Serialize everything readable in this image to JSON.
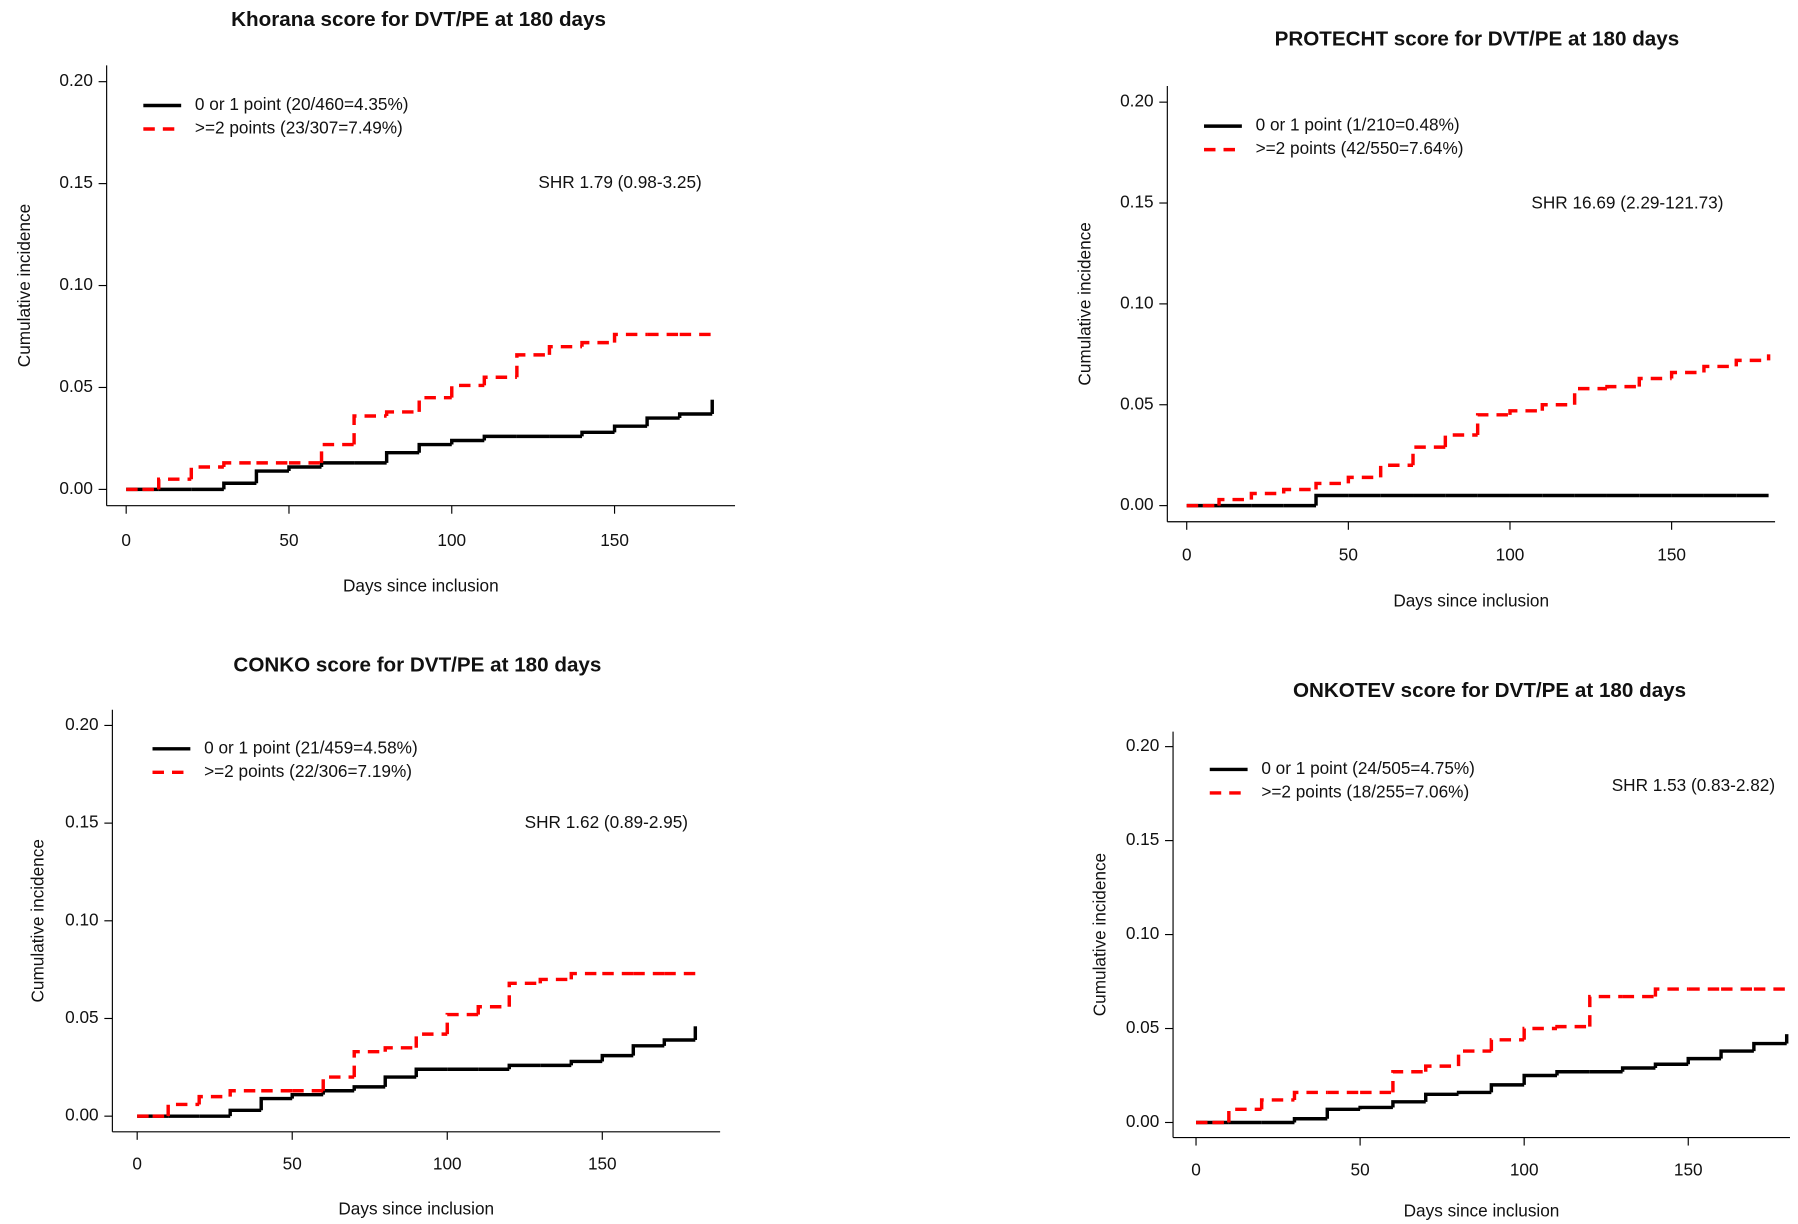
{
  "chart_data": [
    {
      "type": "line",
      "drawstyle": "steps-post",
      "title": "Khorana score for DVT/PE at 180 days",
      "xlabel": "Days since inclusion",
      "ylabel": "Cumulative incidence",
      "annotation": "SHR 1.79 (0.98-3.25)",
      "x": [
        0,
        5,
        10,
        20,
        30,
        40,
        50,
        60,
        70,
        80,
        90,
        100,
        110,
        120,
        130,
        140,
        150,
        160,
        170,
        180
      ],
      "series": [
        {
          "name": "0 or 1 point (20/460=4.35%)",
          "color": "#000000",
          "linestyle": "solid",
          "values": [
            0,
            0,
            0,
            0,
            0.003,
            0.009,
            0.011,
            0.013,
            0.013,
            0.018,
            0.022,
            0.024,
            0.026,
            0.026,
            0.026,
            0.028,
            0.031,
            0.035,
            0.037,
            0.044
          ]
        },
        {
          "name": ">=2 points (23/307=7.49%)",
          "color": "#ff0000",
          "linestyle": "dashed",
          "values": [
            0,
            0,
            0.005,
            0.011,
            0.013,
            0.013,
            0.013,
            0.022,
            0.036,
            0.038,
            0.045,
            0.051,
            0.055,
            0.066,
            0.07,
            0.072,
            0.076,
            0.076,
            0.076,
            0.076
          ]
        }
      ],
      "xlim": [
        -6,
        187
      ],
      "ylim": [
        -0.008,
        0.208
      ],
      "xticks": [
        0,
        50,
        100,
        150
      ],
      "yticks": [
        {
          "value": 0,
          "label": "0.00"
        },
        {
          "value": 0.05,
          "label": "0.05"
        },
        {
          "value": 0.1,
          "label": "0.10"
        },
        {
          "value": 0.15,
          "label": "0.15"
        },
        {
          "value": 0.2,
          "label": "0.20"
        }
      ]
    },
    {
      "type": "line",
      "drawstyle": "steps-post",
      "title": "PROTECHT score for DVT/PE at 180 days",
      "xlabel": "Days since inclusion",
      "ylabel": "Cumulative incidence",
      "annotation": "SHR 16.69 (2.29-121.73)",
      "x": [
        0,
        5,
        10,
        20,
        30,
        40,
        50,
        60,
        70,
        80,
        90,
        100,
        110,
        120,
        130,
        140,
        150,
        160,
        170,
        180
      ],
      "series": [
        {
          "name": "0 or 1 point (1/210=0.48%)",
          "color": "#000000",
          "linestyle": "solid",
          "values": [
            0,
            0,
            0,
            0,
            0,
            0.005,
            0.005,
            0.005,
            0.005,
            0.005,
            0.005,
            0.005,
            0.005,
            0.005,
            0.005,
            0.005,
            0.005,
            0.005,
            0.005,
            0.005
          ]
        },
        {
          "name": ">=2 points (42/550=7.64%)",
          "color": "#ff0000",
          "linestyle": "dashed",
          "values": [
            0,
            0,
            0.003,
            0.006,
            0.008,
            0.011,
            0.014,
            0.02,
            0.029,
            0.035,
            0.045,
            0.047,
            0.05,
            0.058,
            0.059,
            0.063,
            0.066,
            0.069,
            0.072,
            0.075
          ]
        }
      ],
      "xlim": [
        -6,
        182
      ],
      "ylim": [
        -0.008,
        0.208
      ],
      "xticks": [
        0,
        50,
        100,
        150
      ],
      "yticks": [
        {
          "value": 0,
          "label": "0.00"
        },
        {
          "value": 0.05,
          "label": "0.05"
        },
        {
          "value": 0.1,
          "label": "0.10"
        },
        {
          "value": 0.15,
          "label": "0.15"
        },
        {
          "value": 0.2,
          "label": "0.20"
        }
      ]
    },
    {
      "type": "line",
      "drawstyle": "steps-post",
      "title": "CONKO score for DVT/PE at 180 days",
      "xlabel": "Days since inclusion",
      "ylabel": "Cumulative incidence",
      "annotation": "SHR 1.62 (0.89-2.95)",
      "x": [
        0,
        5,
        10,
        20,
        30,
        40,
        50,
        60,
        70,
        80,
        90,
        100,
        110,
        120,
        130,
        140,
        150,
        160,
        170,
        180
      ],
      "series": [
        {
          "name": "0 or 1 point (21/459=4.58%)",
          "color": "#000000",
          "linestyle": "solid",
          "values": [
            0,
            0,
            0,
            0,
            0.003,
            0.009,
            0.011,
            0.013,
            0.015,
            0.02,
            0.024,
            0.024,
            0.024,
            0.026,
            0.026,
            0.028,
            0.031,
            0.036,
            0.039,
            0.046
          ]
        },
        {
          "name": ">=2 points (22/306=7.19%)",
          "color": "#ff0000",
          "linestyle": "dashed",
          "values": [
            0,
            0,
            0.006,
            0.01,
            0.013,
            0.013,
            0.013,
            0.02,
            0.033,
            0.035,
            0.042,
            0.052,
            0.056,
            0.068,
            0.07,
            0.073,
            0.073,
            0.073,
            0.073,
            0.073
          ]
        }
      ],
      "xlim": [
        -8,
        188
      ],
      "ylim": [
        -0.008,
        0.208
      ],
      "xticks": [
        0,
        50,
        100,
        150
      ],
      "yticks": [
        {
          "value": 0,
          "label": "0.00"
        },
        {
          "value": 0.05,
          "label": "0.05"
        },
        {
          "value": 0.1,
          "label": "0.10"
        },
        {
          "value": 0.15,
          "label": "0.15"
        },
        {
          "value": 0.2,
          "label": "0.20"
        }
      ]
    },
    {
      "type": "line",
      "drawstyle": "steps-post",
      "title": "ONKOTEV score for DVT/PE at 180 days",
      "xlabel": "Days since inclusion",
      "ylabel": "Cumulative incidence",
      "annotation": "SHR 1.53 (0.83-2.82)",
      "x": [
        0,
        5,
        10,
        20,
        30,
        40,
        50,
        60,
        70,
        80,
        90,
        100,
        110,
        120,
        130,
        140,
        150,
        160,
        170,
        180
      ],
      "series": [
        {
          "name": "0 or 1 point (24/505=4.75%)",
          "color": "#000000",
          "linestyle": "solid",
          "values": [
            0,
            0,
            0,
            0,
            0.002,
            0.007,
            0.008,
            0.011,
            0.015,
            0.016,
            0.02,
            0.025,
            0.027,
            0.027,
            0.029,
            0.031,
            0.034,
            0.038,
            0.042,
            0.047
          ]
        },
        {
          "name": ">=2 points (18/255=7.06%)",
          "color": "#ff0000",
          "linestyle": "dashed",
          "values": [
            0,
            0,
            0.007,
            0.012,
            0.016,
            0.016,
            0.016,
            0.027,
            0.03,
            0.038,
            0.044,
            0.05,
            0.051,
            0.067,
            0.067,
            0.071,
            0.071,
            0.071,
            0.071,
            0.071
          ]
        }
      ],
      "xlim": [
        -7,
        181
      ],
      "ylim": [
        -0.008,
        0.208
      ],
      "xticks": [
        0,
        50,
        100,
        150
      ],
      "yticks": [
        {
          "value": 0,
          "label": "0.00"
        },
        {
          "value": 0.05,
          "label": "0.05"
        },
        {
          "value": 0.1,
          "label": "0.10"
        },
        {
          "value": 0.15,
          "label": "0.15"
        },
        {
          "value": 0.2,
          "label": "0.20"
        }
      ]
    }
  ]
}
